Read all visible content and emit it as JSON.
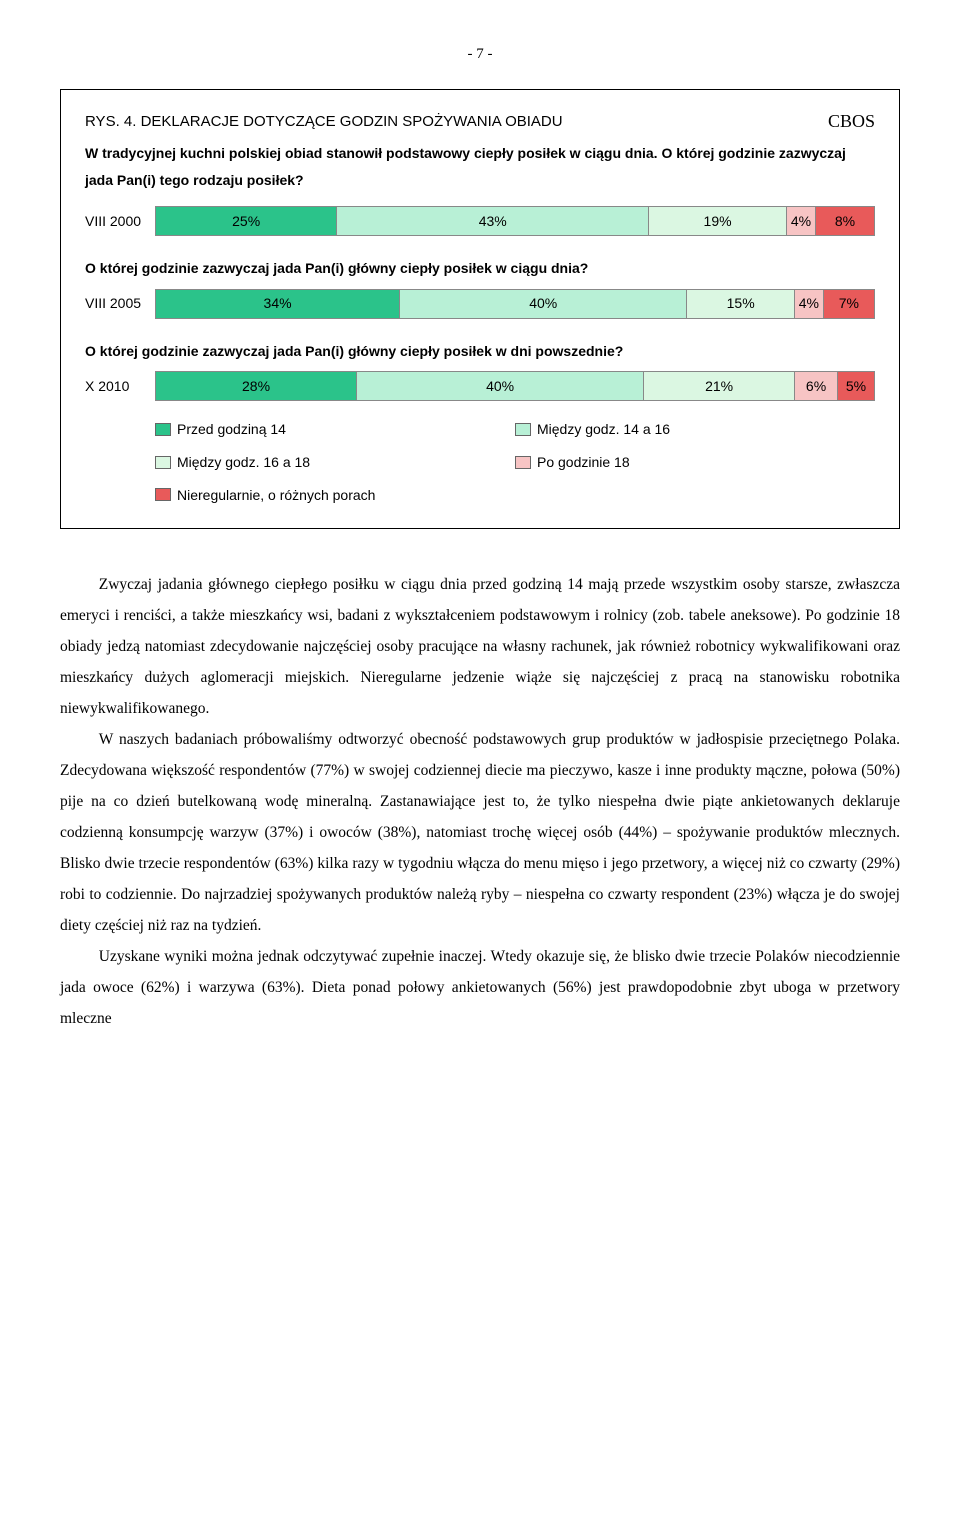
{
  "page_number": "- 7 -",
  "chart": {
    "cbos_label": "CBOS",
    "title": "RYS. 4. DEKLARACJE DOTYCZĄCE GODZIN SPOŻYWANIA OBIADU",
    "subtitle": "W tradycyjnej kuchni polskiej obiad stanowił podstawowy ciepły posiłek w ciągu dnia. O której godzinie zazwyczaj jada Pan(i) tego rodzaju posiłek?",
    "rows": [
      {
        "label": "VIII 2000",
        "segments": [
          {
            "v": 25,
            "text": "25%",
            "color": "#2bc38a"
          },
          {
            "v": 43,
            "text": "43%",
            "color": "#b8f0d6"
          },
          {
            "v": 19,
            "text": "19%",
            "color": "#dbf7e2"
          },
          {
            "v": 4,
            "text": "4%",
            "color": "#f7c4c4"
          },
          {
            "v": 8,
            "text": "8%",
            "color": "#e85a5a"
          }
        ]
      }
    ],
    "question2": "O której godzinie zazwyczaj jada Pan(i) główny ciepły posiłek w ciągu dnia?",
    "rows2": [
      {
        "label": "VIII 2005",
        "segments": [
          {
            "v": 34,
            "text": "34%",
            "color": "#2bc38a"
          },
          {
            "v": 40,
            "text": "40%",
            "color": "#b8f0d6"
          },
          {
            "v": 15,
            "text": "15%",
            "color": "#dbf7e2"
          },
          {
            "v": 4,
            "text": "4%",
            "color": "#f7c4c4"
          },
          {
            "v": 7,
            "text": "7%",
            "color": "#e85a5a"
          }
        ]
      }
    ],
    "question3": "O której godzinie zazwyczaj jada Pan(i) główny ciepły posiłek w dni powszednie?",
    "rows3": [
      {
        "label": "X 2010",
        "segments": [
          {
            "v": 28,
            "text": "28%",
            "color": "#2bc38a"
          },
          {
            "v": 40,
            "text": "40%",
            "color": "#b8f0d6"
          },
          {
            "v": 21,
            "text": "21%",
            "color": "#dbf7e2"
          },
          {
            "v": 6,
            "text": "6%",
            "color": "#f7c4c4"
          },
          {
            "v": 5,
            "text": "5%",
            "color": "#e85a5a"
          }
        ]
      }
    ],
    "legend": [
      {
        "label": "Przed godziną 14",
        "color": "#2bc38a"
      },
      {
        "label": "Między godz. 14 a 16",
        "color": "#b8f0d6"
      },
      {
        "label": "Między godz. 16 a 18",
        "color": "#dbf7e2"
      },
      {
        "label": "Po godzinie 18",
        "color": "#f7c4c4"
      },
      {
        "label": "Nieregularnie, o różnych porach",
        "color": "#e85a5a"
      }
    ]
  },
  "body": {
    "p1": "Zwyczaj jadania głównego ciepłego posiłku w ciągu dnia przed godziną 14 mają przede wszystkim osoby starsze, zwłaszcza emeryci i renciści, a także mieszkańcy wsi, badani z wykształceniem podstawowym i rolnicy (zob. tabele aneksowe). Po godzinie 18 obiady jedzą natomiast zdecydowanie najczęściej osoby pracujące na własny rachunek, jak również robotnicy wykwalifikowani oraz mieszkańcy dużych aglomeracji miejskich. Nieregularne jedzenie wiąże się najczęściej z pracą na stanowisku robotnika niewykwalifikowanego.",
    "p2": "W naszych badaniach próbowaliśmy odtworzyć obecność podstawowych grup produktów w jadłospisie przeciętnego Polaka. Zdecydowana większość respondentów (77%) w swojej codziennej diecie ma pieczywo, kasze i inne produkty mączne, połowa (50%) pije na co dzień butelkowaną wodę mineralną. Zastanawiające jest to, że tylko niespełna dwie piąte ankietowanych deklaruje codzienną konsumpcję warzyw (37%) i owoców (38%), natomiast trochę więcej osób (44%) – spożywanie produktów mlecznych. Blisko dwie trzecie respondentów (63%) kilka razy w tygodniu włącza do menu mięso i jego przetwory, a więcej niż co czwarty (29%) robi to codziennie. Do najrzadziej spożywanych produktów należą ryby – niespełna co czwarty respondent (23%) włącza je do swojej diety częściej niż raz na tydzień.",
    "p3": "Uzyskane wyniki można jednak odczytywać zupełnie inaczej. Wtedy okazuje się, że blisko dwie trzecie Polaków niecodziennie jada owoce (62%) i warzywa (63%). Dieta ponad połowy ankietowanych (56%) jest prawdopodobnie zbyt uboga w przetwory mleczne"
  }
}
